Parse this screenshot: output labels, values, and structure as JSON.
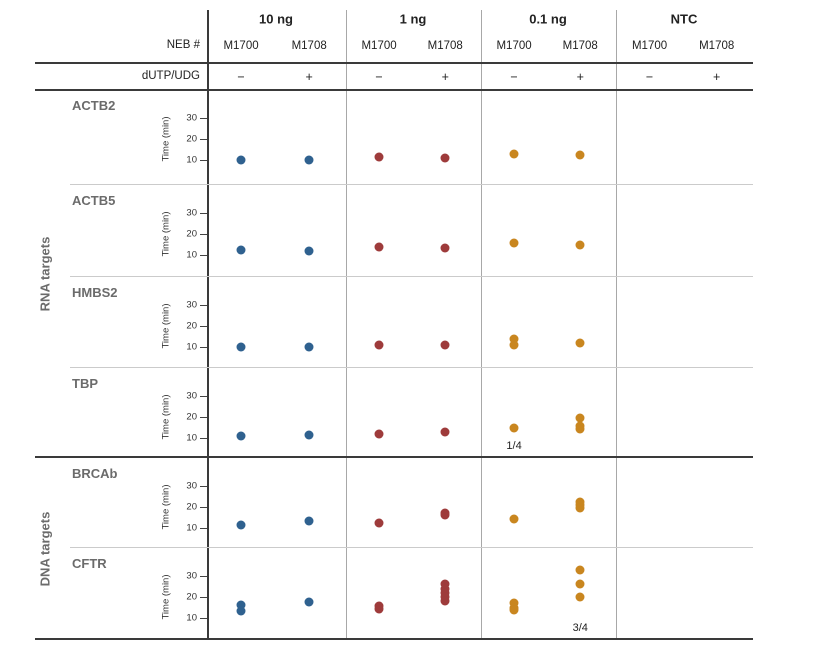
{
  "figure": {
    "header": {
      "neb_label": "NEB #",
      "dutp_label": "dUTP/UDG"
    },
    "sections": [
      {
        "label": "RNA targets"
      },
      {
        "label": "DNA targets"
      }
    ]
  },
  "chart_data": {
    "type": "scatter",
    "ylabel": "Time (min)",
    "yticks": [
      30,
      20,
      10
    ],
    "ylim": [
      5,
      38
    ],
    "groups": [
      {
        "label": "10 ng",
        "color": "#2f618f"
      },
      {
        "label": "1 ng",
        "color": "#9e3b3b"
      },
      {
        "label": "0.1 ng",
        "color": "#c9861f"
      },
      {
        "label": "NTC",
        "color": "#999999"
      }
    ],
    "subcolumns": [
      "M1700",
      "M1708"
    ],
    "dutp_udg": [
      "−",
      "+"
    ],
    "rows": [
      {
        "section": "RNA targets",
        "target": "ACTB2",
        "times_min": [
          [
            10
          ],
          [
            10
          ],
          [
            11.5
          ],
          [
            11
          ],
          [
            13
          ],
          [
            12.5
          ],
          [],
          []
        ]
      },
      {
        "section": "RNA targets",
        "target": "ACTB5",
        "times_min": [
          [
            12.5
          ],
          [
            12
          ],
          [
            14
          ],
          [
            13.5
          ],
          [
            15.5
          ],
          [
            15
          ],
          [],
          []
        ]
      },
      {
        "section": "RNA targets",
        "target": "HMBS2",
        "times_min": [
          [
            10
          ],
          [
            10
          ],
          [
            11
          ],
          [
            11
          ],
          [
            14,
            11
          ],
          [
            12
          ],
          [],
          []
        ]
      },
      {
        "section": "RNA targets",
        "target": "TBP",
        "times_min": [
          [
            11
          ],
          [
            11.5
          ],
          [
            12
          ],
          [
            13
          ],
          [
            15
          ],
          [
            19.5,
            15.5,
            14.5
          ],
          [],
          []
        ],
        "annotations": [
          {
            "col": 4,
            "text": "1/4"
          }
        ]
      },
      {
        "section": "DNA targets",
        "target": "BRCAb",
        "times_min": [
          [
            11.5
          ],
          [
            13.5
          ],
          [
            12.5
          ],
          [
            17,
            16
          ],
          [
            14.5
          ],
          [
            22.5,
            21,
            19.5
          ],
          [],
          []
        ]
      },
      {
        "section": "DNA targets",
        "target": "CFTR",
        "times_min": [
          [
            16,
            13.5
          ],
          [
            17.5
          ],
          [
            15.5,
            14.5
          ],
          [
            26,
            24,
            22,
            20,
            18
          ],
          [
            17,
            15,
            14
          ],
          [
            33,
            26,
            20
          ],
          [],
          []
        ],
        "annotations": [
          {
            "col": 5,
            "text": "3/4"
          }
        ]
      }
    ]
  }
}
